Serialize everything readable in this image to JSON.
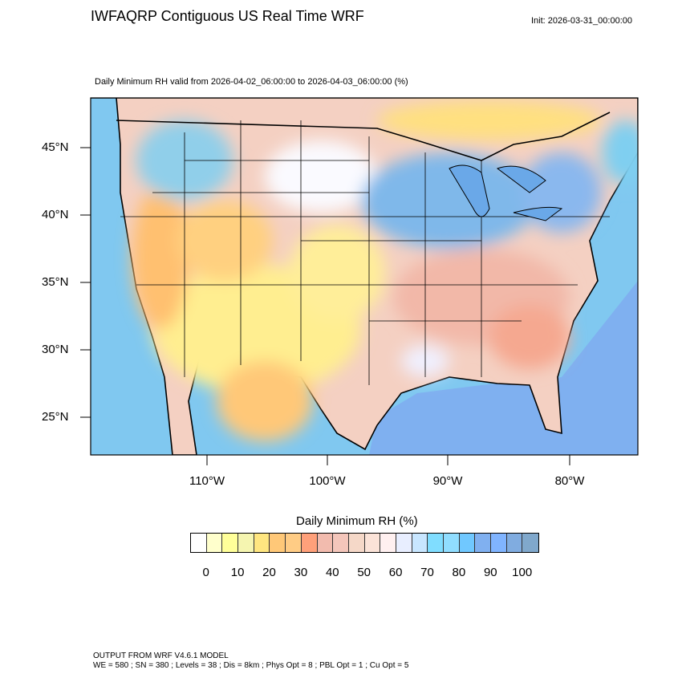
{
  "header": {
    "title": "IWFAQRP Contiguous US Real Time WRF",
    "init": "Init: 2026-03-31_00:00:00"
  },
  "plot": {
    "subtitle": "Daily Minimum RH valid from 2026-04-02_06:00:00 to 2026-04-03_06:00:00   (%)",
    "lat_labels": [
      "45°N",
      "40°N",
      "35°N",
      "30°N",
      "25°N"
    ],
    "lon_labels": [
      "110°W",
      "100°W",
      "90°W",
      "80°W"
    ]
  },
  "colorbar": {
    "title": "Daily Minimum RH  (%)",
    "labels": [
      "0",
      "10",
      "20",
      "30",
      "40",
      "50",
      "60",
      "70",
      "80",
      "90",
      "100"
    ],
    "colors": [
      "#ffffff",
      "#ffffcc",
      "#ffff99",
      "#f5f5b0",
      "#ffe680",
      "#ffc878",
      "#ffcc85",
      "#ffa07a",
      "#f2bbae",
      "#f4c6bb",
      "#f5d8c8",
      "#fbe3d8",
      "#fff0f0",
      "#e8eeff",
      "#c8e6ff",
      "#80ddff",
      "#90ddff",
      "#70c8ff",
      "#80b0f0",
      "#80b4ff",
      "#80ace0",
      "#80a8cc"
    ]
  },
  "footer": {
    "line1": "OUTPUT FROM WRF V4.6.1 MODEL",
    "line2": "WE = 580 ; SN = 380 ; Levels = 38 ; Dis = 8km ; Phys Opt = 8 ; PBL Opt = 1 ; Cu Opt = 5"
  }
}
